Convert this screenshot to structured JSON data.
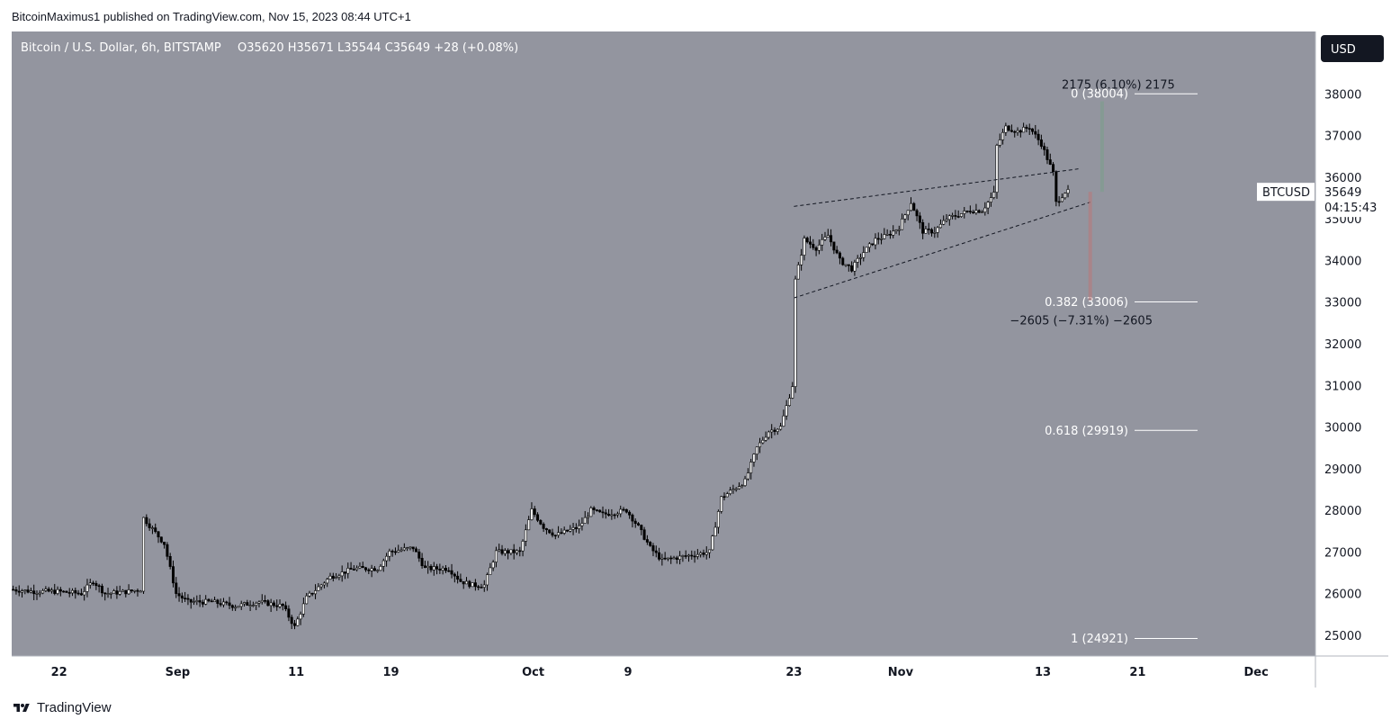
{
  "publisher": "BitcoinMaximus1 published on TradingView.com, Nov 15, 2023 08:44 UTC+1",
  "footer": {
    "brand": "TradingView",
    "icon": "tradingview-logo-icon"
  },
  "colors": {
    "background": "#93959f",
    "candle": "#000000",
    "fib": "#ffffff",
    "measure_red": "#b87a7c",
    "label_bg": "#ffffff",
    "currency_bg": "#131722"
  },
  "chart_data": {
    "type": "candlestick",
    "title": "Bitcoin / U.S. Dollar, 6h, BITSTAMP",
    "ohlc_header": {
      "open": "O35620",
      "high": "H35671",
      "low": "L35544",
      "close": "C35649",
      "change": "+28 (+0.08%)"
    },
    "currency": "USD",
    "symbol": "BTCUSD",
    "last_price": "35649",
    "countdown": "04:15:43",
    "ylim": [
      24500,
      39500
    ],
    "y_ticks": [
      25000,
      26000,
      27000,
      28000,
      29000,
      30000,
      31000,
      32000,
      33000,
      34000,
      35000,
      36000,
      37000,
      38000
    ],
    "x_range": [
      "2023-08-18",
      "2023-12-06"
    ],
    "x_ticks": [
      {
        "label": "22",
        "date": "2023-08-22"
      },
      {
        "label": "Sep",
        "date": "2023-09-01"
      },
      {
        "label": "11",
        "date": "2023-09-11"
      },
      {
        "label": "19",
        "date": "2023-09-19"
      },
      {
        "label": "Oct",
        "date": "2023-10-01"
      },
      {
        "label": "9",
        "date": "2023-10-09"
      },
      {
        "label": "23",
        "date": "2023-10-23"
      },
      {
        "label": "Nov",
        "date": "2023-11-01"
      },
      {
        "label": "13",
        "date": "2023-11-13"
      },
      {
        "label": "21",
        "date": "2023-11-21"
      },
      {
        "label": "Dec",
        "date": "2023-12-01"
      }
    ],
    "price_path": [
      [
        "2023-08-18",
        26100
      ],
      [
        "2023-08-20",
        26050
      ],
      [
        "2023-08-22",
        26050
      ],
      [
        "2023-08-24",
        26000
      ],
      [
        "2023-08-25",
        26300
      ],
      [
        "2023-08-26",
        26000
      ],
      [
        "2023-08-28",
        26050
      ],
      [
        "2023-08-29",
        26100
      ],
      [
        "2023-08-29",
        27900
      ],
      [
        "2023-08-31",
        27200
      ],
      [
        "2023-09-01",
        26000
      ],
      [
        "2023-09-02",
        25800
      ],
      [
        "2023-09-04",
        25800
      ],
      [
        "2023-09-06",
        25700
      ],
      [
        "2023-09-08",
        25800
      ],
      [
        "2023-09-10",
        25700
      ],
      [
        "2023-09-11",
        25200
      ],
      [
        "2023-09-12",
        25900
      ],
      [
        "2023-09-14",
        26400
      ],
      [
        "2023-09-16",
        26600
      ],
      [
        "2023-09-18",
        26600
      ],
      [
        "2023-09-19",
        27000
      ],
      [
        "2023-09-21",
        27100
      ],
      [
        "2023-09-22",
        26600
      ],
      [
        "2023-09-24",
        26600
      ],
      [
        "2023-09-25",
        26300
      ],
      [
        "2023-09-26",
        26200
      ],
      [
        "2023-09-27",
        26200
      ],
      [
        "2023-09-28",
        27000
      ],
      [
        "2023-09-30",
        27000
      ],
      [
        "2023-10-01",
        28000
      ],
      [
        "2023-10-02",
        27600
      ],
      [
        "2023-10-03",
        27400
      ],
      [
        "2023-10-05",
        27600
      ],
      [
        "2023-10-06",
        28000
      ],
      [
        "2023-10-07",
        27900
      ],
      [
        "2023-10-09",
        28000
      ],
      [
        "2023-10-10",
        27600
      ],
      [
        "2023-10-11",
        27100
      ],
      [
        "2023-10-12",
        26800
      ],
      [
        "2023-10-14",
        26900
      ],
      [
        "2023-10-16",
        27000
      ],
      [
        "2023-10-17",
        28300
      ],
      [
        "2023-10-18",
        28500
      ],
      [
        "2023-10-19",
        28700
      ],
      [
        "2023-10-20",
        29500
      ],
      [
        "2023-10-21",
        29900
      ],
      [
        "2023-10-22",
        30000
      ],
      [
        "2023-10-23",
        31000
      ],
      [
        "2023-10-23",
        33200
      ],
      [
        "2023-10-24",
        34500
      ],
      [
        "2023-10-25",
        34300
      ],
      [
        "2023-10-26",
        34600
      ],
      [
        "2023-10-27",
        34000
      ],
      [
        "2023-10-28",
        33800
      ],
      [
        "2023-10-29",
        34200
      ],
      [
        "2023-10-30",
        34500
      ],
      [
        "2023-10-31",
        34600
      ],
      [
        "2023-11-01",
        34800
      ],
      [
        "2023-11-02",
        35400
      ],
      [
        "2023-11-03",
        34700
      ],
      [
        "2023-11-04",
        34700
      ],
      [
        "2023-11-05",
        35000
      ],
      [
        "2023-11-06",
        35100
      ],
      [
        "2023-11-07",
        35200
      ],
      [
        "2023-11-08",
        35200
      ],
      [
        "2023-11-09",
        35600
      ],
      [
        "2023-11-09",
        36600
      ],
      [
        "2023-11-10",
        37200
      ],
      [
        "2023-11-11",
        37100
      ],
      [
        "2023-11-12",
        37200
      ],
      [
        "2023-11-13",
        36800
      ],
      [
        "2023-11-14",
        36100
      ],
      [
        "2023-11-14",
        35300
      ],
      [
        "2023-11-15",
        35649
      ]
    ],
    "wedge_lines": [
      {
        "from": [
          "2023-10-23",
          35300
        ],
        "to": [
          "2023-11-16",
          36200
        ]
      },
      {
        "from": [
          "2023-10-23",
          33100
        ],
        "to": [
          "2023-11-17",
          35400
        ]
      }
    ],
    "fib_levels": [
      {
        "label": "0 (38004)",
        "value": 38004
      },
      {
        "label": "0.382 (33006)",
        "value": 33006
      },
      {
        "label": "0.618 (29919)",
        "value": 29919
      },
      {
        "label": "1 (24921)",
        "value": 24921
      }
    ],
    "measurements": [
      {
        "label": "2175 (6.10%) 2175",
        "date": "2023-11-18",
        "from": 35649,
        "to": 37824,
        "color": "#7b9e8c"
      },
      {
        "label": "−2605 (−7.31%) −2605",
        "date": "2023-11-17",
        "from": 35649,
        "to": 33044,
        "color": "#b87a7c"
      }
    ]
  }
}
